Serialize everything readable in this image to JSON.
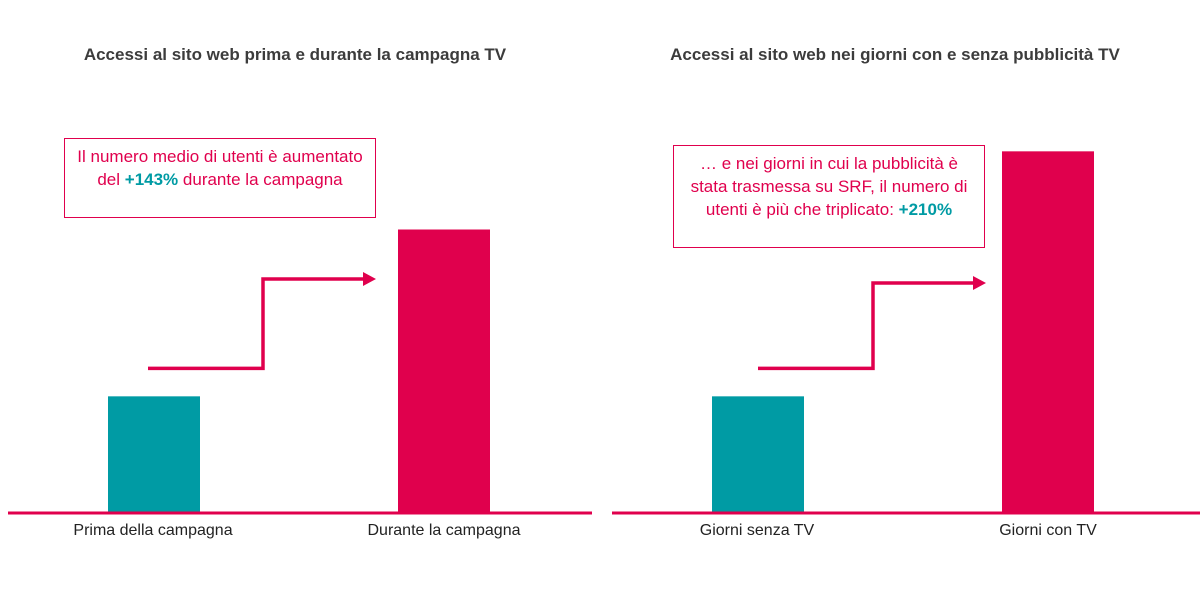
{
  "colors": {
    "accent": "#e0004d",
    "teal": "#009ba4",
    "title": "#3c3c3c",
    "text": "#222222"
  },
  "chart_data": [
    {
      "type": "bar",
      "title": "Accessi al sito web prima e durante la campagna TV",
      "categories": [
        "Prima della campagna",
        "Durante la campagna"
      ],
      "values": [
        100,
        243
      ],
      "bar_colors": [
        "#009ba4",
        "#e0004d"
      ],
      "xlabel": "",
      "ylabel": "",
      "ylim": [
        0,
        330
      ],
      "grid": false,
      "callout": {
        "prefix": "Il numero medio di utenti è aumentato del ",
        "highlight": "+143%",
        "suffix": " durante la campagna"
      }
    },
    {
      "type": "bar",
      "title": "Accessi al sito web nei giorni con e senza pubblicità TV",
      "categories": [
        "Giorni senza TV",
        "Giorni con TV"
      ],
      "values": [
        100,
        310
      ],
      "bar_colors": [
        "#009ba4",
        "#e0004d"
      ],
      "xlabel": "",
      "ylabel": "",
      "ylim": [
        0,
        330
      ],
      "grid": false,
      "callout": {
        "prefix": "… e nei giorni in cui la pubblicità è stata trasmessa su SRF, il numero di utenti è più che triplicato: ",
        "highlight": "+210%",
        "suffix": ""
      }
    }
  ]
}
